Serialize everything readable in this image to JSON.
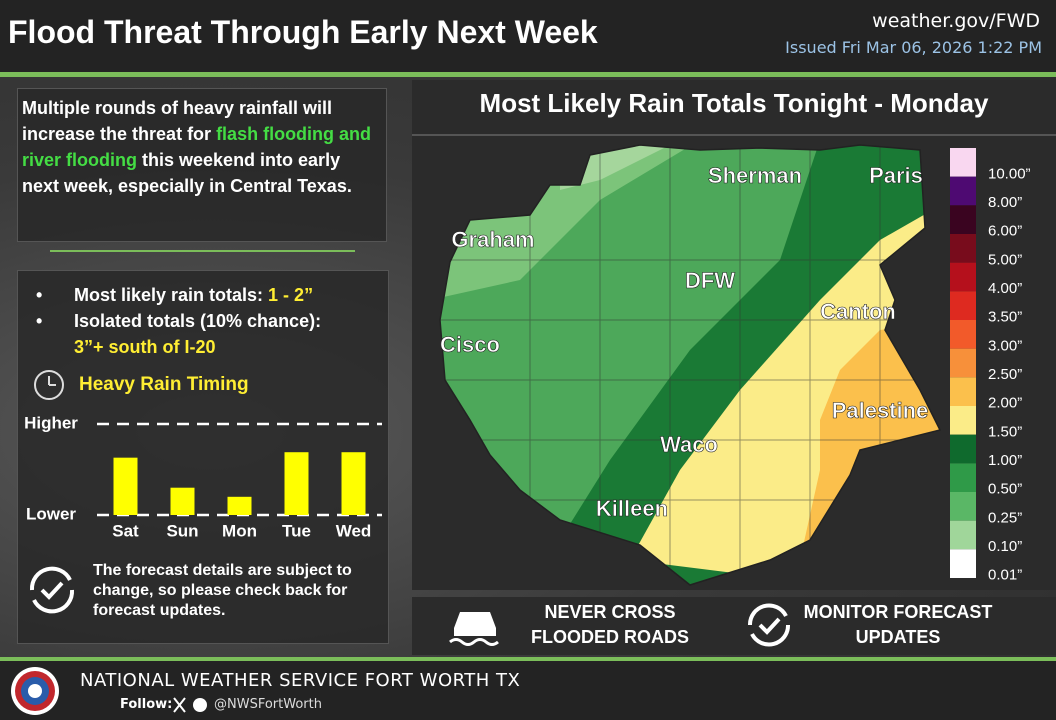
{
  "header": {
    "title": "Flood Threat Through Early Next Week",
    "website": "weather.gov/FWD",
    "issued": "Issued Fri Mar 06, 2026 1:22 PM"
  },
  "summary": {
    "text_before": "Multiple rounds of heavy rainfall will increase the threat for ",
    "highlight": "flash flooding and river flooding",
    "text_after": " this weekend into early next week, especially in Central Texas."
  },
  "bullets": [
    {
      "label": "Most likely rain totals: ",
      "value": "1 - 2”"
    },
    {
      "label": "Isolated totals (10% chance):",
      "value": "3”+ south of I-20"
    }
  ],
  "chart_data": {
    "type": "bar",
    "title": "Heavy Rain Timing",
    "categories": [
      "Sat",
      "Sun",
      "Mon",
      "Tue",
      "Wed"
    ],
    "values": [
      0.63,
      0.3,
      0.2,
      0.69,
      0.69
    ],
    "color": "#ffff00",
    "ylim": [
      0,
      1
    ],
    "yticks": [
      {
        "value": 0,
        "label": "Lower"
      },
      {
        "value": 1,
        "label": "Higher"
      }
    ]
  },
  "note": "The forecast details are subject to change, so please check back for forecast updates.",
  "map": {
    "title": "Most Likely Rain Totals Tonight - Monday",
    "cities": [
      "Sherman",
      "Paris",
      "Graham",
      "DFW",
      "Canton",
      "Cisco",
      "Palestine",
      "Waco",
      "Killeen"
    ],
    "legend": [
      {
        "label": "10.00”",
        "color": "#f9d7f0"
      },
      {
        "label": "8.00”",
        "color": "#4e0a72"
      },
      {
        "label": "6.00”",
        "color": "#3a0420"
      },
      {
        "label": "5.00”",
        "color": "#780c1c"
      },
      {
        "label": "4.00”",
        "color": "#b5101c"
      },
      {
        "label": "3.50”",
        "color": "#de2a20"
      },
      {
        "label": "3.00”",
        "color": "#f25a2a"
      },
      {
        "label": "2.50”",
        "color": "#f7903a"
      },
      {
        "label": "2.00”",
        "color": "#fbc04c"
      },
      {
        "label": "1.50”",
        "color": "#fbec88"
      },
      {
        "label": "1.00”",
        "color": "#0f6a2d"
      },
      {
        "label": "0.50”",
        "color": "#2f9a48"
      },
      {
        "label": "0.25”",
        "color": "#5ab766"
      },
      {
        "label": "0.10”",
        "color": "#a0d69a"
      },
      {
        "label": "0.01”",
        "color": "#ffffff"
      }
    ]
  },
  "actions": [
    "NEVER CROSS FLOODED ROADS",
    "MONITOR FORECAST UPDATES"
  ],
  "footer": {
    "office": "NATIONAL WEATHER SERVICE FORT WORTH TX",
    "follow": "Follow:",
    "handle": "@NWSFortWorth"
  }
}
